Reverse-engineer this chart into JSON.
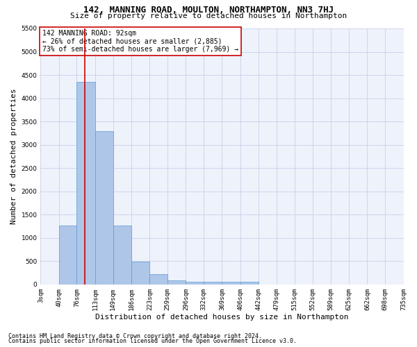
{
  "title1": "142, MANNING ROAD, MOULTON, NORTHAMPTON, NN3 7HJ",
  "title2": "Size of property relative to detached houses in Northampton",
  "xlabel": "Distribution of detached houses by size in Northampton",
  "ylabel": "Number of detached properties",
  "footer1": "Contains HM Land Registry data © Crown copyright and database right 2024.",
  "footer2": "Contains public sector information licensed under the Open Government Licence v3.0.",
  "annotation_line1": "142 MANNING ROAD: 92sqm",
  "annotation_line2": "← 26% of detached houses are smaller (2,885)",
  "annotation_line3": "73% of semi-detached houses are larger (7,969) →",
  "bar_edges": [
    3,
    40,
    76,
    113,
    149,
    186,
    223,
    259,
    296,
    332,
    369,
    406,
    442,
    479,
    515,
    552,
    589,
    625,
    662,
    698,
    735
  ],
  "bar_heights": [
    0,
    1260,
    4350,
    3300,
    1270,
    490,
    220,
    90,
    55,
    55,
    55,
    55,
    0,
    0,
    0,
    0,
    0,
    0,
    0,
    0
  ],
  "bar_color": "#aec6e8",
  "bar_edge_color": "#5b9bd5",
  "property_line_x": 92,
  "property_line_color": "#cc0000",
  "ylim": [
    0,
    5500
  ],
  "yticks": [
    0,
    500,
    1000,
    1500,
    2000,
    2500,
    3000,
    3500,
    4000,
    4500,
    5000,
    5500
  ],
  "bg_color": "#eef2fb",
  "grid_color": "#c8d0e8",
  "annotation_box_color": "#cc0000",
  "title1_fontsize": 9,
  "title2_fontsize": 8,
  "axis_label_fontsize": 8,
  "tick_fontsize": 6.5,
  "annotation_fontsize": 7,
  "footer_fontsize": 6
}
